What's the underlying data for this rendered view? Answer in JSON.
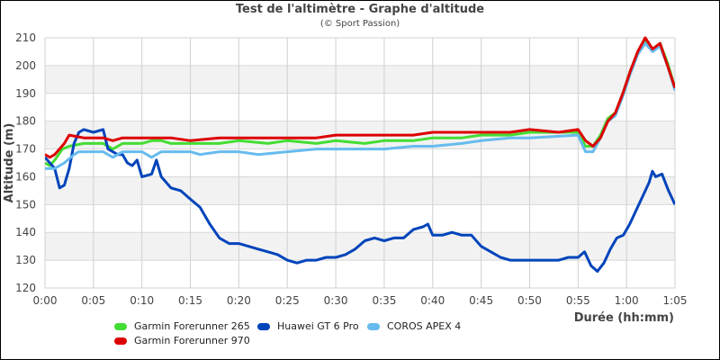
{
  "chart_data": {
    "type": "line",
    "title": "Test de l'altimètre - Graphe d'altitude",
    "subtitle": "(© Sport Passion)",
    "xlabel": "Durée (hh:mm)",
    "ylabel": "Altitude (m)",
    "xlim": [
      0,
      65
    ],
    "ylim": [
      120,
      210
    ],
    "x_ticks": [
      "0:00",
      "0:05",
      "0:10",
      "0:15",
      "0:20",
      "0:25",
      "0:30",
      "0:35",
      "0:40",
      "0:45",
      "0:50",
      "0:55",
      "1:00",
      "1:05"
    ],
    "y_ticks": [
      120,
      130,
      140,
      150,
      160,
      170,
      180,
      190,
      200,
      210
    ],
    "grid": true,
    "legend_position": "bottom",
    "series": [
      {
        "name": "Garmin Forerunner 265",
        "color": "#44dd33",
        "points": [
          [
            0,
            165
          ],
          [
            0.5,
            164
          ],
          [
            1,
            166
          ],
          [
            1.8,
            170
          ],
          [
            2.5,
            171
          ],
          [
            4,
            172
          ],
          [
            6,
            172
          ],
          [
            7,
            170
          ],
          [
            8,
            172
          ],
          [
            9,
            172
          ],
          [
            10,
            172
          ],
          [
            11,
            173
          ],
          [
            12,
            173
          ],
          [
            13,
            172
          ],
          [
            15,
            172
          ],
          [
            18,
            172
          ],
          [
            20,
            173
          ],
          [
            23,
            172
          ],
          [
            25,
            173
          ],
          [
            28,
            172
          ],
          [
            30,
            173
          ],
          [
            33,
            172
          ],
          [
            35,
            173
          ],
          [
            38,
            173
          ],
          [
            40,
            174
          ],
          [
            43,
            174
          ],
          [
            45,
            175
          ],
          [
            48,
            175
          ],
          [
            50,
            176
          ],
          [
            53,
            176
          ],
          [
            55,
            176
          ],
          [
            56,
            171
          ],
          [
            57,
            171
          ],
          [
            58,
            175
          ],
          [
            59,
            181
          ],
          [
            60,
            183
          ],
          [
            61,
            190
          ],
          [
            62,
            198
          ],
          [
            63,
            205
          ],
          [
            64,
            209
          ],
          [
            65,
            206
          ],
          [
            66,
            208
          ],
          [
            67,
            201
          ],
          [
            68,
            192
          ]
        ]
      },
      {
        "name": "Huawei GT 6 Pro",
        "color": "#0044bb",
        "points": [
          [
            0,
            167
          ],
          [
            1,
            163
          ],
          [
            1.5,
            156
          ],
          [
            2,
            157
          ],
          [
            2.5,
            163
          ],
          [
            3,
            172
          ],
          [
            3.5,
            176
          ],
          [
            4,
            177
          ],
          [
            5,
            176
          ],
          [
            6,
            177
          ],
          [
            6.5,
            170
          ],
          [
            7.5,
            168
          ],
          [
            8,
            168
          ],
          [
            8.5,
            165
          ],
          [
            9,
            164
          ],
          [
            9.5,
            166
          ],
          [
            10,
            160
          ],
          [
            11,
            161
          ],
          [
            11.5,
            166
          ],
          [
            12,
            160
          ],
          [
            13,
            156
          ],
          [
            14,
            155
          ],
          [
            15,
            152
          ],
          [
            16,
            149
          ],
          [
            17,
            143
          ],
          [
            18,
            138
          ],
          [
            19,
            136
          ],
          [
            20,
            136
          ],
          [
            21,
            135
          ],
          [
            22,
            134
          ],
          [
            23,
            133
          ],
          [
            24,
            132
          ],
          [
            25,
            130
          ],
          [
            26,
            129
          ],
          [
            27,
            130
          ],
          [
            28,
            130
          ],
          [
            29,
            131
          ],
          [
            30,
            131
          ],
          [
            31,
            132
          ],
          [
            32,
            134
          ],
          [
            33,
            137
          ],
          [
            34,
            138
          ],
          [
            35,
            137
          ],
          [
            36,
            138
          ],
          [
            37,
            138
          ],
          [
            38,
            141
          ],
          [
            39,
            142
          ],
          [
            39.5,
            143
          ],
          [
            40,
            139
          ],
          [
            41,
            139
          ],
          [
            42,
            140
          ],
          [
            43,
            139
          ],
          [
            44,
            139
          ],
          [
            45,
            135
          ],
          [
            46,
            133
          ],
          [
            47,
            131
          ],
          [
            48,
            130
          ],
          [
            50,
            130
          ],
          [
            52,
            130
          ],
          [
            53,
            130
          ],
          [
            54,
            131
          ],
          [
            55,
            131
          ],
          [
            56,
            133
          ],
          [
            57,
            128
          ],
          [
            58,
            126
          ],
          [
            59,
            129
          ],
          [
            60,
            134
          ],
          [
            61,
            138
          ],
          [
            62,
            139
          ],
          [
            63,
            143
          ],
          [
            64,
            148
          ],
          [
            65,
            153
          ],
          [
            66,
            158
          ],
          [
            66.5,
            162
          ],
          [
            67,
            160
          ],
          [
            68,
            161
          ],
          [
            69,
            155
          ],
          [
            70,
            150
          ]
        ]
      },
      {
        "name": "COROS APEX 4",
        "color": "#66bbee",
        "points": [
          [
            0,
            163
          ],
          [
            1,
            163
          ],
          [
            2,
            165
          ],
          [
            3,
            168
          ],
          [
            3.5,
            169
          ],
          [
            6,
            169
          ],
          [
            7,
            167
          ],
          [
            8,
            169
          ],
          [
            10,
            169
          ],
          [
            11,
            167
          ],
          [
            12,
            169
          ],
          [
            15,
            169
          ],
          [
            16,
            168
          ],
          [
            18,
            169
          ],
          [
            20,
            169
          ],
          [
            22,
            168
          ],
          [
            25,
            169
          ],
          [
            28,
            170
          ],
          [
            30,
            170
          ],
          [
            33,
            170
          ],
          [
            35,
            170
          ],
          [
            38,
            171
          ],
          [
            40,
            171
          ],
          [
            43,
            172
          ],
          [
            45,
            173
          ],
          [
            48,
            174
          ],
          [
            50,
            174
          ],
          [
            55,
            175
          ],
          [
            56,
            169
          ],
          [
            57,
            169
          ],
          [
            58,
            174
          ],
          [
            59,
            180
          ],
          [
            60,
            182
          ],
          [
            61,
            189
          ],
          [
            62,
            197
          ],
          [
            63,
            204
          ],
          [
            64,
            208
          ],
          [
            65,
            205
          ],
          [
            66,
            207
          ],
          [
            67,
            200
          ],
          [
            68,
            191
          ]
        ]
      },
      {
        "name": "Garmin Forerunner 970",
        "color": "#dd0000",
        "points": [
          [
            0,
            168
          ],
          [
            0.5,
            167
          ],
          [
            1,
            168
          ],
          [
            2,
            172
          ],
          [
            2.5,
            175
          ],
          [
            4,
            174
          ],
          [
            6,
            174
          ],
          [
            7,
            173
          ],
          [
            8,
            174
          ],
          [
            10,
            174
          ],
          [
            12,
            174
          ],
          [
            13,
            174
          ],
          [
            15,
            173
          ],
          [
            18,
            174
          ],
          [
            20,
            174
          ],
          [
            23,
            174
          ],
          [
            25,
            174
          ],
          [
            28,
            174
          ],
          [
            30,
            175
          ],
          [
            33,
            175
          ],
          [
            35,
            175
          ],
          [
            38,
            175
          ],
          [
            40,
            176
          ],
          [
            43,
            176
          ],
          [
            45,
            176
          ],
          [
            48,
            176
          ],
          [
            50,
            177
          ],
          [
            53,
            176
          ],
          [
            55,
            177
          ],
          [
            56,
            173
          ],
          [
            57,
            171
          ],
          [
            58,
            174
          ],
          [
            59,
            180
          ],
          [
            60,
            183
          ],
          [
            61,
            190
          ],
          [
            62,
            198
          ],
          [
            63,
            205
          ],
          [
            64,
            210
          ],
          [
            65,
            206
          ],
          [
            66,
            208
          ],
          [
            67,
            200
          ],
          [
            68,
            192
          ]
        ]
      }
    ],
    "legend": [
      {
        "name": "Garmin Forerunner 265",
        "color": "#44dd33"
      },
      {
        "name": "Huawei GT 6 Pro",
        "color": "#0044bb"
      },
      {
        "name": "COROS APEX 4",
        "color": "#66bbee"
      },
      {
        "name": "Garmin Forerunner 970",
        "color": "#dd0000"
      }
    ]
  }
}
